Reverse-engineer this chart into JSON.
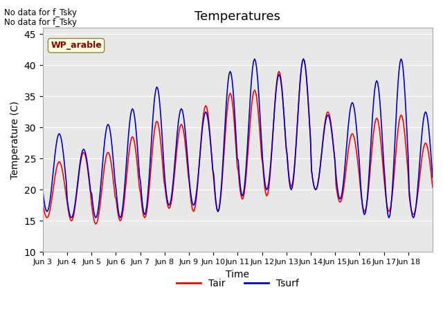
{
  "title": "Temperatures",
  "xlabel": "Time",
  "ylabel": "Temperature (C)",
  "ylim": [
    10,
    46
  ],
  "yticks": [
    10,
    15,
    20,
    25,
    30,
    35,
    40,
    45
  ],
  "x_tick_labels": [
    "Jun 3",
    "Jun 4",
    "Jun 5",
    "Jun 6",
    "Jun 7",
    "Jun 8",
    "Jun 9",
    "Jun 10",
    "Jun 11",
    "Jun 12",
    "Jun 13",
    "Jun 14",
    "Jun 15",
    "Jun 16",
    "Jun 17",
    "Jun 18"
  ],
  "annotation_line1": "No data for f_Tsky",
  "annotation_line2": "No data for f_Tsky",
  "wp_label": "WP_arable",
  "tair_color": "#ff0000",
  "tsurf_color": "#0000cc",
  "bg_color": "#e8e8e8",
  "n_days": 16,
  "pts_per_day": 24,
  "day_peaks_air": [
    24.5,
    26.0,
    26.0,
    28.5,
    31.0,
    30.5,
    33.5,
    35.5,
    36.0,
    39.0,
    41.0,
    32.5,
    29.0,
    31.5,
    32.0,
    27.5
  ],
  "day_mins_air": [
    15.5,
    15.0,
    14.5,
    15.0,
    15.5,
    17.0,
    16.5,
    16.5,
    18.5,
    19.0,
    20.5,
    20.0,
    18.0,
    16.5,
    16.5,
    16.0
  ],
  "day_peaks_surf": [
    29.0,
    26.5,
    30.5,
    33.0,
    36.5,
    33.0,
    32.5,
    39.0,
    41.0,
    38.5,
    41.0,
    32.0,
    34.0,
    37.5,
    41.0,
    32.5
  ],
  "day_mins_surf": [
    16.5,
    15.5,
    15.5,
    15.5,
    16.0,
    17.5,
    17.5,
    16.5,
    19.0,
    20.0,
    20.0,
    20.0,
    18.5,
    16.0,
    15.5,
    15.5
  ]
}
